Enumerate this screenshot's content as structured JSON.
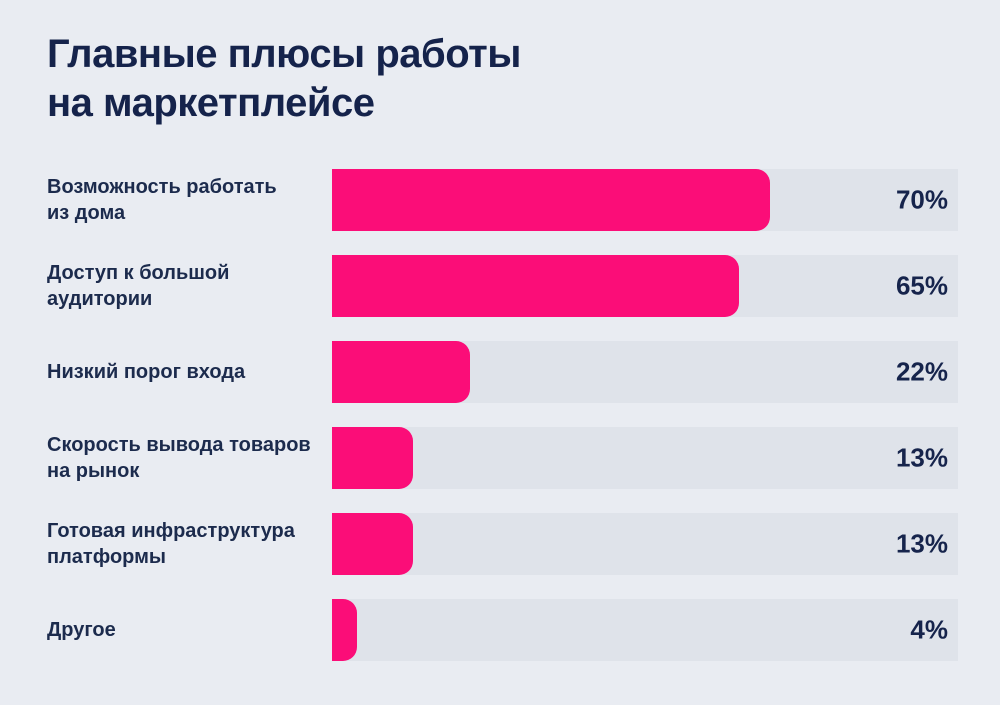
{
  "title": {
    "text": "Главные плюсы работы\nна маркетплейсе"
  },
  "colors": {
    "background": "#e9ecf2",
    "track": "#dfe3ea",
    "bar": "#fb0d78",
    "text": "#16244c"
  },
  "chart_data": {
    "type": "bar",
    "orientation": "horizontal",
    "title": "Главные плюсы работы на маркетплейсе",
    "xlabel": "",
    "ylabel": "",
    "xlim": [
      0,
      100
    ],
    "grid": false,
    "legend": false,
    "value_suffix": "%",
    "categories": [
      "Возможность работать из дома",
      "Доступ к большой аудитории",
      "Низкий порог входа",
      "Скорость вывода товаров на рынок",
      "Готовая инфраструктура платформы",
      "Другое"
    ],
    "values": [
      70,
      65,
      22,
      13,
      13,
      4
    ],
    "items": [
      {
        "label": "Возможность работать\nиз дома",
        "value": 70,
        "value_label": "70%"
      },
      {
        "label": "Доступ к большой\nаудитории",
        "value": 65,
        "value_label": "65%"
      },
      {
        "label": "Низкий порог входа",
        "value": 22,
        "value_label": "22%"
      },
      {
        "label": "Скорость вывода товаров\nна рынок",
        "value": 13,
        "value_label": "13%"
      },
      {
        "label": "Готовая инфраструктура\nплатформы",
        "value": 13,
        "value_label": "13%"
      },
      {
        "label": "Другое",
        "value": 4,
        "value_label": "4%"
      }
    ]
  }
}
